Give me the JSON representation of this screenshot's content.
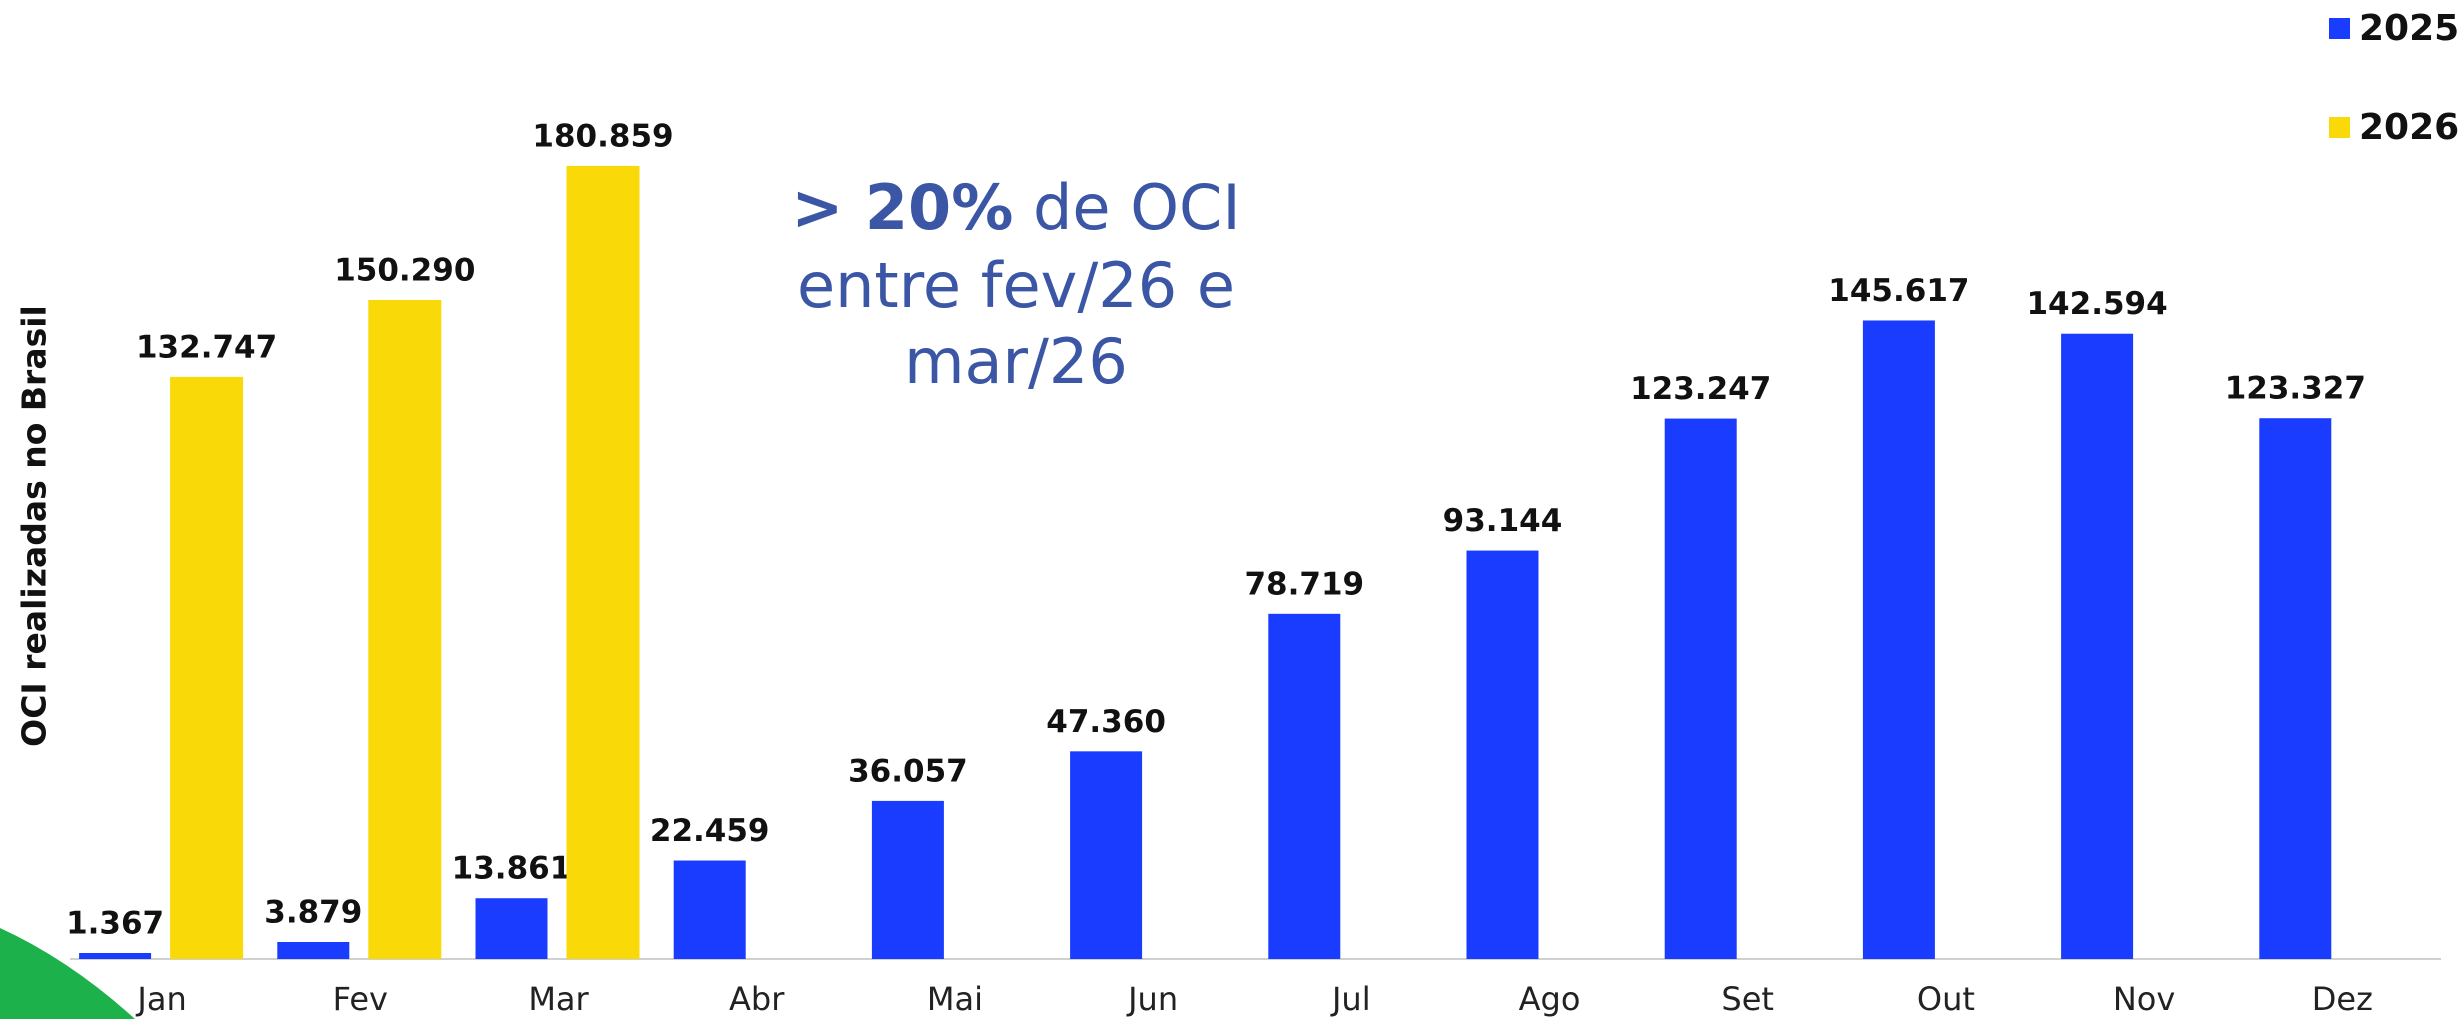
{
  "chart_data": {
    "type": "bar",
    "y_label": "OCI realizadas no Brasil",
    "annotation": {
      "emphasis": "> 20%",
      "lines": [
        "de OCI",
        "entre fev/26 e",
        "mar/26"
      ]
    },
    "categories": [
      "Jan",
      "Fev",
      "Mar",
      "Abr",
      "Mai",
      "Jun",
      "Jul",
      "Ago",
      "Set",
      "Out",
      "Nov",
      "Dez"
    ],
    "series": [
      {
        "name": "2025",
        "color": "#1a3cff",
        "values": [
          1367,
          3879,
          13861,
          22459,
          36057,
          47360,
          78719,
          93144,
          123247,
          145617,
          142594,
          123327
        ],
        "value_labels": [
          "1.367",
          "3.879",
          "13.861",
          "22.459",
          "36.057",
          "47.360",
          "78.719",
          "93.144",
          "123.247",
          "145.617",
          "142.594",
          "123.327"
        ]
      },
      {
        "name": "2026",
        "color": "#f9d908",
        "values": [
          132747,
          150290,
          180859,
          null,
          null,
          null,
          null,
          null,
          null,
          null,
          null,
          null
        ],
        "value_labels": [
          "132.747",
          "150.290",
          "180.859",
          null,
          null,
          null,
          null,
          null,
          null,
          null,
          null,
          null
        ]
      }
    ],
    "ylim": [
      0,
      200000
    ],
    "legend": "top-right"
  }
}
